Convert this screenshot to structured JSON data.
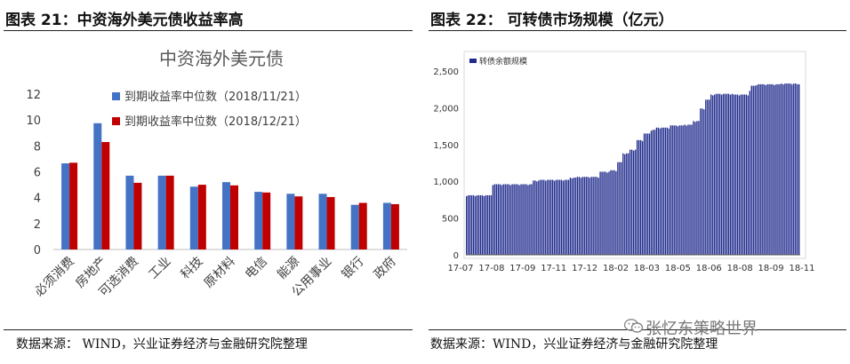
{
  "left": {
    "figure_title": "图表 21：中资海外美元债收益率高",
    "source": "数据来源：  WIND，兴业证券经济与金融研究院整理"
  },
  "right": {
    "figure_title": "图表 22：  可转债市场规模（亿元）",
    "source": "数据来源：WIND，兴业证券经济与金融研究院整理"
  },
  "watermark": "张忆东策略世界",
  "colors": {
    "series1": "#4472c4",
    "series2": "#c00000",
    "series3": "#1f2a8c"
  },
  "chart_data": [
    {
      "type": "bar",
      "title": "中资海外美元债",
      "categories": [
        "必须消费",
        "房地产",
        "可选消费",
        "工业",
        "科技",
        "原材料",
        "电信",
        "能源",
        "公用事业",
        "银行",
        "政府"
      ],
      "series": [
        {
          "name": "到期收益率中位数（2018/11/21）",
          "values": [
            6.65,
            9.75,
            5.7,
            5.7,
            4.85,
            5.2,
            4.45,
            4.3,
            4.3,
            3.45,
            3.6
          ]
        },
        {
          "name": "到期收益率中位数（2018/12/21）",
          "values": [
            6.7,
            8.3,
            5.15,
            5.7,
            5.0,
            4.95,
            4.4,
            4.1,
            4.05,
            3.6,
            3.5
          ]
        }
      ],
      "yticks": [
        0,
        2,
        4,
        6,
        8,
        10,
        12
      ],
      "ylim": [
        0,
        12
      ],
      "grid": false,
      "legend": "top-center"
    },
    {
      "type": "bar",
      "series": [
        {
          "name": "转债余额规模"
        }
      ],
      "yticks": [
        "0",
        "500",
        "1,000",
        "1,500",
        "2,000",
        "2,500"
      ],
      "ylim": [
        0,
        2500
      ],
      "xticks": [
        "17-07",
        "17-08",
        "17-09",
        "17-11",
        "17-12",
        "18-02",
        "18-03",
        "18-05",
        "18-06",
        "18-08",
        "18-09",
        "18-11"
      ],
      "steps": [
        {
          "to": 0.0,
          "v": 810
        },
        {
          "to": 0.078,
          "v": 810
        },
        {
          "to": 0.08,
          "v": 940
        },
        {
          "to": 0.2,
          "v": 960
        },
        {
          "to": 0.22,
          "v": 1010
        },
        {
          "to": 0.31,
          "v": 1020
        },
        {
          "to": 0.33,
          "v": 1050
        },
        {
          "to": 0.4,
          "v": 1060
        },
        {
          "to": 0.43,
          "v": 1130
        },
        {
          "to": 0.45,
          "v": 1150
        },
        {
          "to": 0.47,
          "v": 1260
        },
        {
          "to": 0.49,
          "v": 1380
        },
        {
          "to": 0.51,
          "v": 1430
        },
        {
          "to": 0.53,
          "v": 1560
        },
        {
          "to": 0.55,
          "v": 1650
        },
        {
          "to": 0.57,
          "v": 1700
        },
        {
          "to": 0.61,
          "v": 1730
        },
        {
          "to": 0.65,
          "v": 1760
        },
        {
          "to": 0.68,
          "v": 1770
        },
        {
          "to": 0.7,
          "v": 1820
        },
        {
          "to": 0.715,
          "v": 1990
        },
        {
          "to": 0.73,
          "v": 2110
        },
        {
          "to": 0.745,
          "v": 2180
        },
        {
          "to": 0.8,
          "v": 2190
        },
        {
          "to": 0.845,
          "v": 2180
        },
        {
          "to": 0.855,
          "v": 2230
        },
        {
          "to": 0.87,
          "v": 2300
        },
        {
          "to": 0.94,
          "v": 2320
        },
        {
          "to": 0.99,
          "v": 2330
        },
        {
          "to": 1.0,
          "v": 2320
        }
      ],
      "grid": false,
      "legend": "top-left"
    }
  ]
}
